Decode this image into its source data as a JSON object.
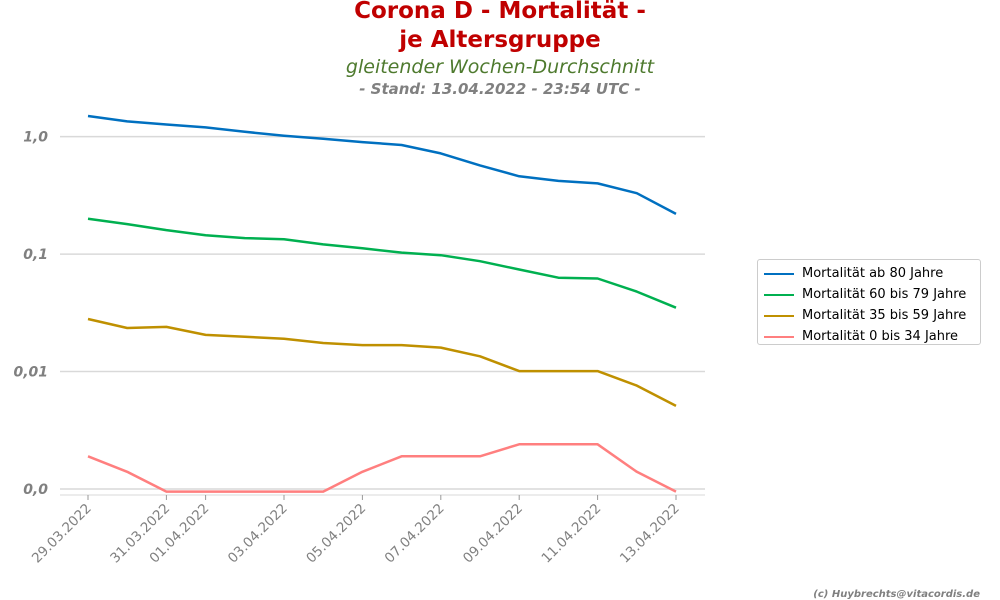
{
  "header": {
    "title_line1": "Corona D - Mortalität -",
    "title_line2": "je Altersgruppe",
    "subtitle": "gleitender Wochen-Durchschnitt",
    "stand": "- Stand: 13.04.2022 - 23:54 UTC -"
  },
  "credit": "(c) Huybrechts@vitacordis.de",
  "chart_data": {
    "type": "line",
    "yscale": "log",
    "ylim": [
      0.001,
      1.5
    ],
    "ytick_values": [
      0.001,
      0.01,
      0.1,
      1.0
    ],
    "ytick_labels": [
      "0,0",
      "0,01",
      "0,1",
      "1,0"
    ],
    "xtick_labels": [
      "29.03.2022",
      "31.03.2022",
      "01.04.2022",
      "03.04.2022",
      "05.04.2022",
      "07.04.2022",
      "09.04.2022",
      "11.04.2022",
      "13.04.2022"
    ],
    "xtick_dates": [
      "2022-03-29",
      "2022-03-31",
      "2022-04-01",
      "2022-04-03",
      "2022-04-05",
      "2022-04-07",
      "2022-04-09",
      "2022-04-11",
      "2022-04-13"
    ],
    "x": [
      "2022-03-29",
      "2022-03-30",
      "2022-03-31",
      "2022-04-01",
      "2022-04-02",
      "2022-04-03",
      "2022-04-04",
      "2022-04-05",
      "2022-04-06",
      "2022-04-07",
      "2022-04-08",
      "2022-04-09",
      "2022-04-10",
      "2022-04-11",
      "2022-04-12",
      "2022-04-13"
    ],
    "grid": "horizontal",
    "legend_position": "right",
    "series": [
      {
        "name": "Mortalität ab 80 Jahre",
        "color": "#0070c0",
        "values": [
          1.5,
          1.35,
          1.27,
          1.2,
          1.1,
          1.02,
          0.96,
          0.9,
          0.85,
          0.72,
          0.57,
          0.46,
          0.42,
          0.4,
          0.33,
          0.22
        ]
      },
      {
        "name": "Mortalität 60 bis 79 Jahre",
        "color": "#00b050",
        "values": [
          0.2,
          0.18,
          0.16,
          0.145,
          0.137,
          0.134,
          0.121,
          0.112,
          0.103,
          0.098,
          0.087,
          0.074,
          0.063,
          0.062,
          0.048,
          0.035
        ]
      },
      {
        "name": "Mortalität 35 bis 59 Jahre",
        "color": "#bf9000",
        "values": [
          0.028,
          0.0235,
          0.024,
          0.0205,
          0.0198,
          0.019,
          0.0175,
          0.0168,
          0.0168,
          0.016,
          0.0135,
          0.0101,
          0.0101,
          0.0101,
          0.0076,
          0.0051
        ]
      },
      {
        "name": "Mortalität 0 bis 34 Jahre",
        "color": "#ff7f7f",
        "values": [
          0.0019,
          0.0014,
          0.00095,
          0.00095,
          0.00095,
          0.00095,
          0.00095,
          0.0014,
          0.0019,
          0.0019,
          0.0019,
          0.0024,
          0.0024,
          0.0024,
          0.0014,
          0.00095
        ]
      }
    ]
  }
}
